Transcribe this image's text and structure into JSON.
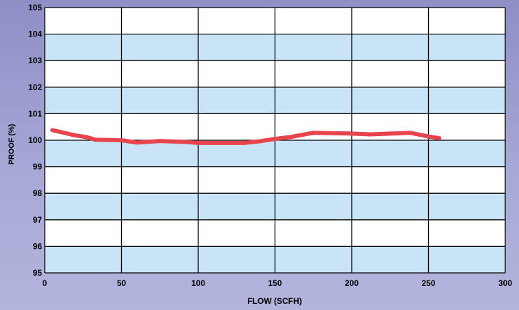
{
  "chart_data": {
    "type": "line",
    "title": "",
    "xlabel": "FLOW (SCFH)",
    "ylabel": "PROOF (%)",
    "xlim": [
      0,
      300
    ],
    "ylim": [
      95,
      105
    ],
    "x_ticks": [
      0,
      50,
      100,
      150,
      200,
      250,
      300
    ],
    "y_ticks": [
      95,
      96,
      97,
      98,
      99,
      100,
      101,
      102,
      103,
      104,
      105
    ],
    "grid": true,
    "legend": "none",
    "series": [
      {
        "color": "#e8444e",
        "x": [
          5,
          20,
          27,
          33,
          50,
          60,
          75,
          90,
          100,
          130,
          140,
          150,
          160,
          175,
          200,
          212,
          225,
          238,
          250,
          257
        ],
        "y": [
          100.38,
          100.18,
          100.12,
          100.02,
          100.0,
          99.91,
          99.97,
          99.94,
          99.9,
          99.9,
          99.96,
          100.05,
          100.12,
          100.28,
          100.25,
          100.22,
          100.25,
          100.28,
          100.14,
          100.08
        ]
      }
    ]
  },
  "colors": {
    "band_light": "#ffffff",
    "band_blue": "#c9e4f6",
    "grid": "#000000"
  }
}
